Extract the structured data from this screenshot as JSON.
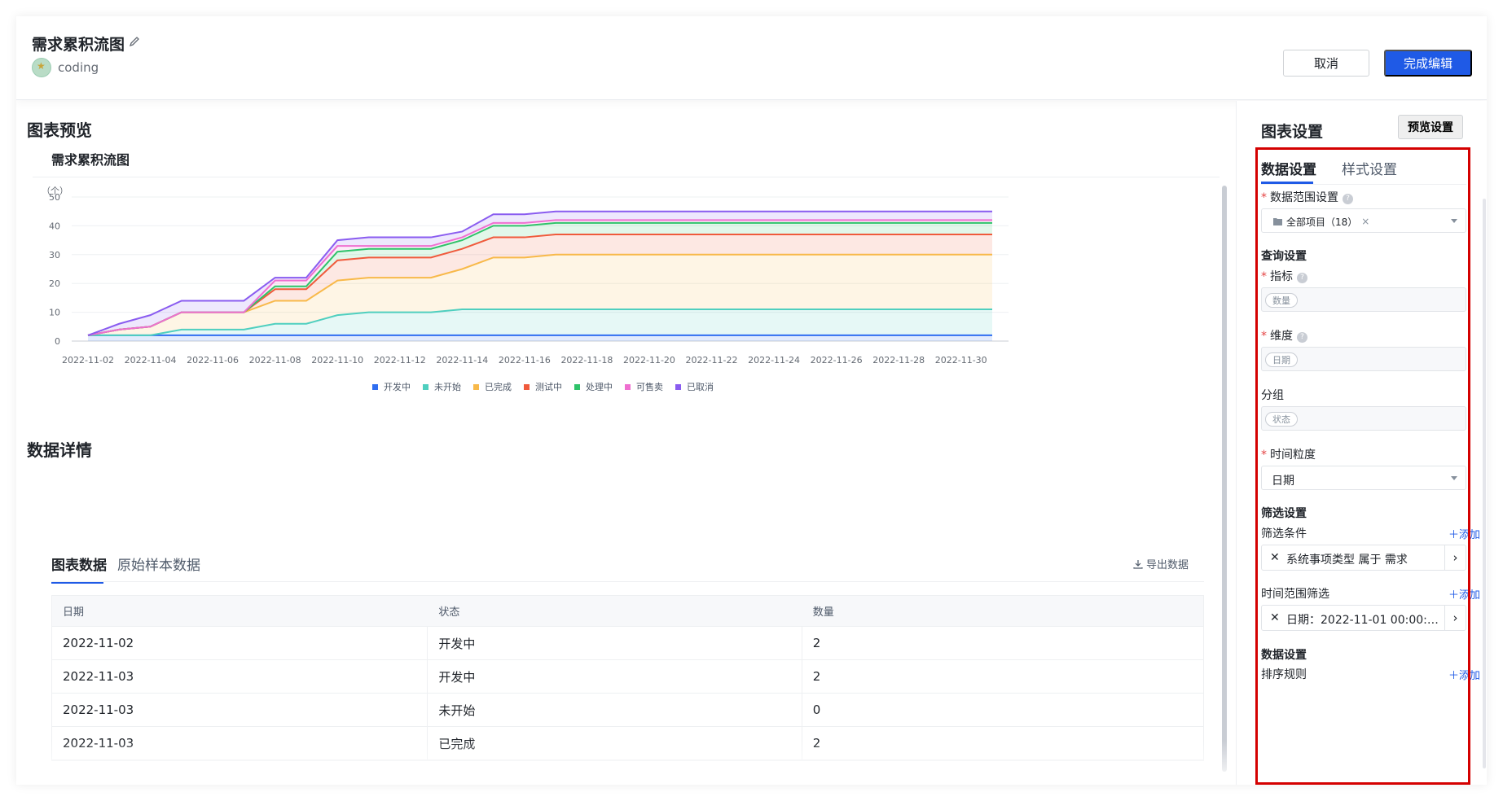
{
  "header": {
    "title": "需求累积流图",
    "project": "coding",
    "cancel_label": "取消",
    "done_label": "完成编辑"
  },
  "preview": {
    "section_title": "图表预览",
    "chart_title": "需求累积流图"
  },
  "chart_data": {
    "type": "area",
    "stacked": true,
    "title": "需求累积流图",
    "ylabel": "（个）",
    "ylim": [
      0,
      50
    ],
    "yticks": [
      0,
      10,
      20,
      30,
      40,
      50
    ],
    "x": [
      "2022-11-02",
      "2022-11-03",
      "2022-11-04",
      "2022-11-05",
      "2022-11-06",
      "2022-11-07",
      "2022-11-08",
      "2022-11-09",
      "2022-11-10",
      "2022-11-11",
      "2022-11-12",
      "2022-11-13",
      "2022-11-14",
      "2022-11-15",
      "2022-11-16",
      "2022-11-17",
      "2022-11-18",
      "2022-11-19",
      "2022-11-20",
      "2022-11-21",
      "2022-11-22",
      "2022-11-23",
      "2022-11-24",
      "2022-11-25",
      "2022-11-26",
      "2022-11-27",
      "2022-11-28",
      "2022-11-29",
      "2022-11-30",
      "2022-12-01"
    ],
    "xticks": [
      "2022-11-02",
      "2022-11-04",
      "2022-11-06",
      "2022-11-08",
      "2022-11-10",
      "2022-11-12",
      "2022-11-14",
      "2022-11-16",
      "2022-11-18",
      "2022-11-20",
      "2022-11-22",
      "2022-11-24",
      "2022-11-26",
      "2022-11-28",
      "2022-11-30"
    ],
    "legend_position": "bottom",
    "grid": true,
    "series": [
      {
        "name": "开发中",
        "color": "#2f6ef1",
        "values": [
          2,
          2,
          2,
          2,
          2,
          2,
          2,
          2,
          2,
          2,
          2,
          2,
          2,
          2,
          2,
          2,
          2,
          2,
          2,
          2,
          2,
          2,
          2,
          2,
          2,
          2,
          2,
          2,
          2,
          2
        ]
      },
      {
        "name": "未开始",
        "color": "#4fcfbf",
        "values": [
          0,
          0,
          0,
          2,
          2,
          2,
          4,
          4,
          7,
          8,
          8,
          8,
          9,
          9,
          9,
          9,
          9,
          9,
          9,
          9,
          9,
          9,
          9,
          9,
          9,
          9,
          9,
          9,
          9,
          9
        ]
      },
      {
        "name": "已完成",
        "color": "#f8b94a",
        "values": [
          0,
          2,
          3,
          6,
          6,
          6,
          8,
          8,
          12,
          12,
          12,
          12,
          14,
          18,
          18,
          19,
          19,
          19,
          19,
          19,
          19,
          19,
          19,
          19,
          19,
          19,
          19,
          19,
          19,
          19
        ]
      },
      {
        "name": "测试中",
        "color": "#f05a3c",
        "values": [
          0,
          0,
          0,
          0,
          0,
          0,
          4,
          4,
          7,
          7,
          7,
          7,
          7,
          7,
          7,
          7,
          7,
          7,
          7,
          7,
          7,
          7,
          7,
          7,
          7,
          7,
          7,
          7,
          7,
          7
        ]
      },
      {
        "name": "处理中",
        "color": "#2fc36a",
        "values": [
          0,
          0,
          0,
          0,
          0,
          0,
          1,
          1,
          3,
          3,
          3,
          3,
          3,
          4,
          4,
          4,
          4,
          4,
          4,
          4,
          4,
          4,
          4,
          4,
          4,
          4,
          4,
          4,
          4,
          4
        ]
      },
      {
        "name": "可售卖",
        "color": "#ef6fd0",
        "values": [
          0,
          0,
          0,
          0,
          0,
          0,
          2,
          2,
          2,
          1,
          1,
          1,
          1,
          1,
          1,
          1,
          1,
          1,
          1,
          1,
          1,
          1,
          1,
          1,
          1,
          1,
          1,
          1,
          1,
          1
        ]
      },
      {
        "name": "已取消",
        "color": "#8a5cf0",
        "values": [
          0,
          2,
          4,
          4,
          4,
          4,
          1,
          1,
          2,
          3,
          3,
          3,
          2,
          3,
          3,
          3,
          3,
          3,
          3,
          3,
          3,
          3,
          3,
          3,
          3,
          3,
          3,
          3,
          3,
          3
        ]
      }
    ]
  },
  "details": {
    "section_title": "数据详情",
    "tabs": [
      {
        "label": "图表数据"
      },
      {
        "label": "原始样本数据"
      }
    ],
    "export_label": "导出数据",
    "columns": [
      "日期",
      "状态",
      "数量"
    ],
    "rows": [
      [
        "2022-11-02",
        "开发中",
        "2"
      ],
      [
        "2022-11-03",
        "开发中",
        "2"
      ],
      [
        "2022-11-03",
        "未开始",
        "0"
      ],
      [
        "2022-11-03",
        "已完成",
        "2"
      ]
    ]
  },
  "settings": {
    "title": "图表设置",
    "preview_button": "预览设置",
    "tabs": [
      {
        "label": "数据设置"
      },
      {
        "label": "样式设置"
      }
    ],
    "data_range_label": "数据范围设置",
    "data_range_value": "全部项目（18）",
    "query_title": "查询设置",
    "metric_label": "指标",
    "metric_chip": "数量",
    "dimension_label": "维度",
    "dimension_chip": "日期",
    "group_label": "分组",
    "group_chip": "状态",
    "granularity_label": "时间粒度",
    "granularity_value": "日期",
    "filter_title": "筛选设置",
    "filter_cond_label": "筛选条件",
    "add_label": "添加",
    "filter_cond_value": "系统事项类型 属于 需求",
    "time_filter_label": "时间范围筛选",
    "time_filter_value": "日期：2022-11-01 00:00:00~...",
    "data_settings_title": "数据设置",
    "sort_label": "排序规则"
  }
}
